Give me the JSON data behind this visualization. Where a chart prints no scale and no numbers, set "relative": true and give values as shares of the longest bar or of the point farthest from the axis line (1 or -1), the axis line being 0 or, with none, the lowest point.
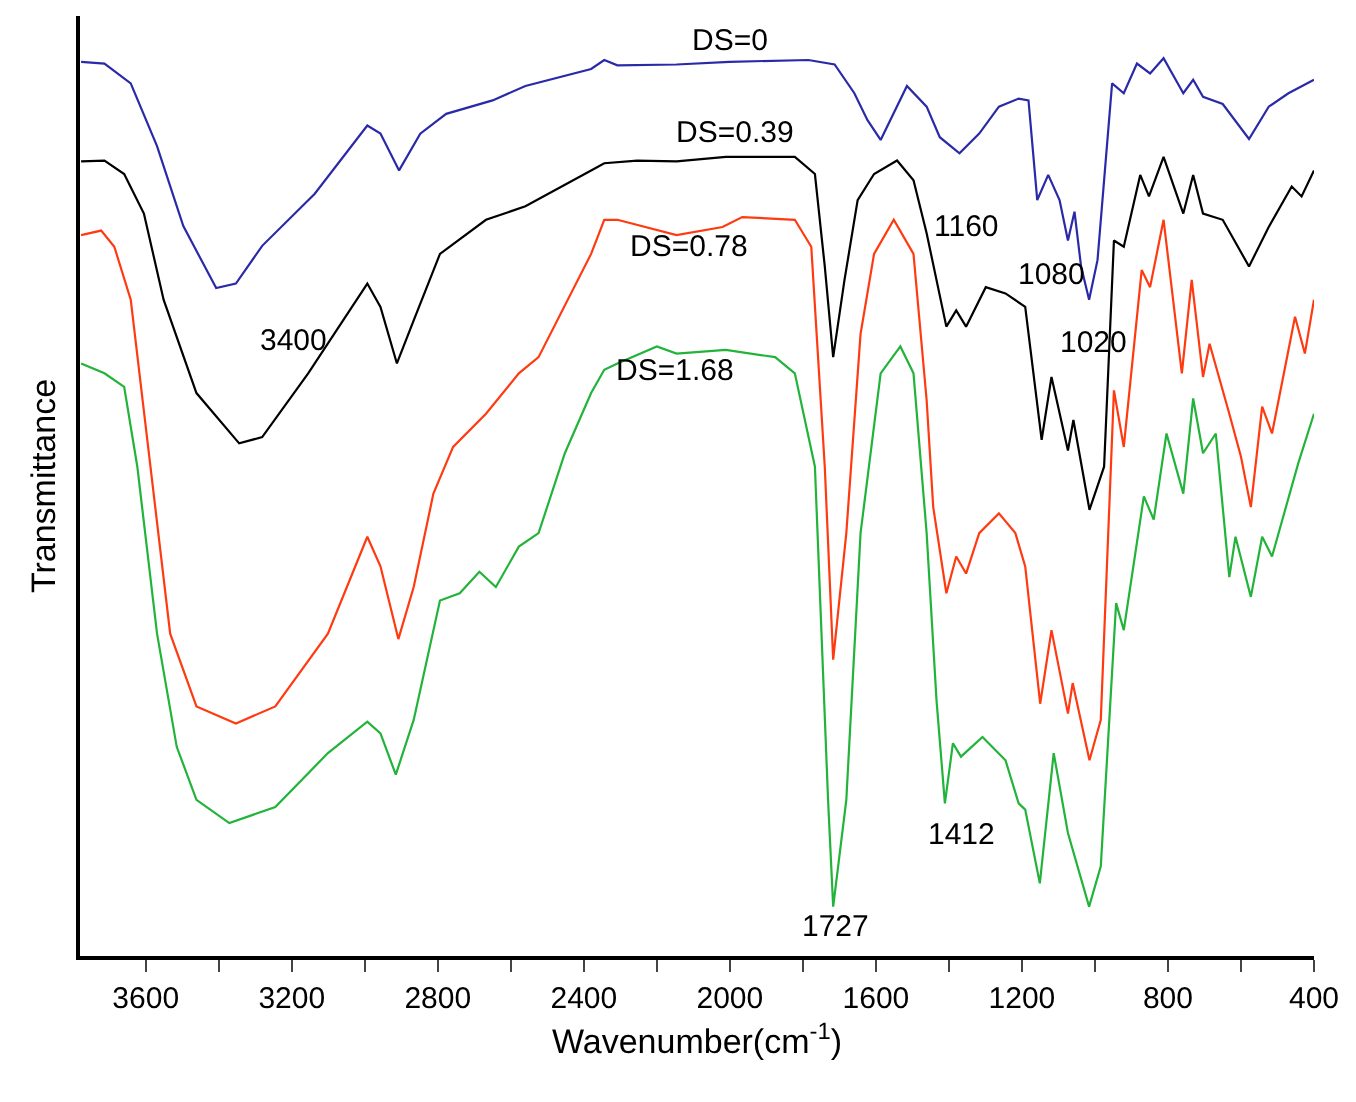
{
  "chart_data": {
    "type": "line",
    "relative": true,
    "xlabel": "Wavenumber(cm$^{-1}$)",
    "ylabel": "Transmittance",
    "xlim": [
      3780,
      400
    ],
    "xticks": [
      3600,
      {
        "value": 3400,
        "label": null
      },
      3200,
      {
        "value": 3000,
        "label": null
      },
      2800,
      {
        "value": 2600,
        "label": null
      },
      2400,
      {
        "value": 2200,
        "label": null
      },
      2000,
      {
        "value": 1800,
        "label": null
      },
      1600,
      {
        "value": 1400,
        "label": null
      },
      1200,
      {
        "value": 1000,
        "label": null
      },
      800,
      {
        "value": 600,
        "label": null
      },
      400
    ],
    "annotations": [
      {
        "text": "3400",
        "x": 3400,
        "y": 0.744
      },
      {
        "text": "1160",
        "x": 1160,
        "y": 0.842
      },
      {
        "text": "1080",
        "x": 1080,
        "y": 0.797
      },
      {
        "text": "1020",
        "x": 1020,
        "y": 0.731
      },
      {
        "text": "1727",
        "x": 1727,
        "y": 0.055
      },
      {
        "text": "1412",
        "x": 1412,
        "y": 0.17
      }
    ],
    "series": [
      {
        "name": "DS=0",
        "color": "#2a2aa8",
        "x": [
          3777,
          3713,
          3641,
          3569,
          3497,
          3407,
          3353,
          3281,
          3137,
          2993,
          2957,
          2906,
          2848,
          2777,
          2650,
          2560,
          2380,
          2344,
          2308,
          2146,
          2001,
          1785,
          1713,
          1659,
          1623,
          1587,
          1515,
          1461,
          1425,
          1371,
          1317,
          1263,
          1209,
          1182,
          1158,
          1128,
          1097,
          1074,
          1056,
          1038,
          1016,
          993,
          953,
          921,
          885,
          849,
          812,
          758,
          731,
          704,
          650,
          578,
          524,
          470,
          400
        ],
        "values": [
          0.996,
          0.994,
          0.972,
          0.902,
          0.813,
          0.744,
          0.749,
          0.791,
          0.849,
          0.925,
          0.916,
          0.875,
          0.916,
          0.938,
          0.953,
          0.969,
          0.988,
          0.998,
          0.992,
          0.993,
          0.996,
          0.998,
          0.993,
          0.961,
          0.931,
          0.909,
          0.969,
          0.946,
          0.912,
          0.894,
          0.916,
          0.946,
          0.955,
          0.953,
          0.842,
          0.87,
          0.842,
          0.797,
          0.829,
          0.768,
          0.731,
          0.775,
          0.972,
          0.961,
          0.994,
          0.983,
          1,
          0.961,
          0.976,
          0.957,
          0.949,
          0.91,
          0.946,
          0.961,
          0.976
        ]
      },
      {
        "name": "DS=0.39",
        "color": "#000000",
        "x": [
          3777,
          3713,
          3659,
          3605,
          3551,
          3461,
          3344,
          3281,
          3155,
          2993,
          2957,
          2912,
          2866,
          2794,
          2668,
          2560,
          2380,
          2344,
          2254,
          2146,
          2011,
          1822,
          1767,
          1740,
          1717,
          1686,
          1650,
          1605,
          1542,
          1497,
          1461,
          1407,
          1380,
          1353,
          1299,
          1245,
          1191,
          1146,
          1119,
          1074,
          1059,
          1015,
          975,
          948,
          921,
          876,
          852,
          812,
          758,
          731,
          704,
          650,
          578,
          524,
          461,
          434,
          400
        ],
        "values": [
          0.885,
          0.886,
          0.871,
          0.827,
          0.731,
          0.627,
          0.571,
          0.578,
          0.649,
          0.749,
          0.723,
          0.66,
          0.708,
          0.782,
          0.82,
          0.835,
          0.875,
          0.883,
          0.886,
          0.885,
          0.89,
          0.89,
          0.871,
          0.768,
          0.667,
          0.753,
          0.842,
          0.871,
          0.886,
          0.864,
          0.805,
          0.701,
          0.719,
          0.701,
          0.745,
          0.738,
          0.723,
          0.575,
          0.645,
          0.563,
          0.597,
          0.497,
          0.545,
          0.797,
          0.79,
          0.87,
          0.846,
          0.89,
          0.827,
          0.87,
          0.827,
          0.82,
          0.768,
          0.812,
          0.857,
          0.846,
          0.875
        ]
      },
      {
        "name": "DS=0.78",
        "color": "#ff3a10",
        "x": [
          3777,
          3722,
          3686,
          3641,
          3587,
          3533,
          3461,
          3353,
          3245,
          3101,
          2993,
          2957,
          2908,
          2866,
          2812,
          2758,
          2668,
          2578,
          2524,
          2380,
          2344,
          2308,
          2146,
          2020,
          1966,
          1822,
          1777,
          1740,
          1717,
          1681,
          1642,
          1605,
          1551,
          1497,
          1461,
          1443,
          1407,
          1380,
          1353,
          1317,
          1263,
          1218,
          1191,
          1150,
          1119,
          1074,
          1061,
          1015,
          984,
          948,
          921,
          872,
          849,
          812,
          762,
          735,
          704,
          686,
          632,
          600,
          573,
          542,
          515,
          452,
          425,
          400
        ],
        "values": [
          0.803,
          0.808,
          0.79,
          0.731,
          0.545,
          0.359,
          0.278,
          0.259,
          0.278,
          0.359,
          0.467,
          0.434,
          0.353,
          0.411,
          0.515,
          0.567,
          0.604,
          0.649,
          0.667,
          0.782,
          0.82,
          0.82,
          0.803,
          0.812,
          0.823,
          0.82,
          0.79,
          0.545,
          0.33,
          0.471,
          0.693,
          0.782,
          0.82,
          0.782,
          0.619,
          0.5,
          0.404,
          0.445,
          0.426,
          0.471,
          0.493,
          0.471,
          0.434,
          0.281,
          0.363,
          0.27,
          0.304,
          0.218,
          0.263,
          0.63,
          0.567,
          0.764,
          0.745,
          0.82,
          0.649,
          0.753,
          0.645,
          0.682,
          0.604,
          0.556,
          0.5,
          0.612,
          0.582,
          0.712,
          0.671,
          0.731
        ]
      },
      {
        "name": "DS=1.68",
        "color": "#22b33a",
        "x": [
          3777,
          3713,
          3659,
          3623,
          3569,
          3515,
          3461,
          3371,
          3245,
          3101,
          2993,
          2957,
          2915,
          2866,
          2794,
          2740,
          2686,
          2641,
          2578,
          2524,
          2452,
          2380,
          2344,
          2308,
          2200,
          2146,
          2011,
          1876,
          1822,
          1767,
          1731,
          1717,
          1681,
          1642,
          1587,
          1533,
          1497,
          1461,
          1434,
          1411,
          1389,
          1367,
          1308,
          1245,
          1209,
          1191,
          1151,
          1113,
          1074,
          1016,
          984,
          942,
          921,
          866,
          839,
          804,
          758,
          731,
          704,
          669,
          632,
          615,
          573,
          542,
          515,
          443,
          400
        ],
        "values": [
          0.66,
          0.649,
          0.634,
          0.545,
          0.359,
          0.233,
          0.174,
          0.148,
          0.166,
          0.226,
          0.261,
          0.248,
          0.202,
          0.263,
          0.396,
          0.404,
          0.428,
          0.411,
          0.456,
          0.471,
          0.56,
          0.627,
          0.653,
          0.66,
          0.679,
          0.671,
          0.675,
          0.667,
          0.649,
          0.545,
          0.174,
          0.055,
          0.174,
          0.471,
          0.649,
          0.679,
          0.649,
          0.471,
          0.285,
          0.17,
          0.237,
          0.222,
          0.244,
          0.218,
          0.17,
          0.163,
          0.081,
          0.226,
          0.137,
          0.055,
          0.1,
          0.393,
          0.363,
          0.512,
          0.486,
          0.582,
          0.515,
          0.621,
          0.56,
          0.582,
          0.422,
          0.467,
          0.4,
          0.467,
          0.445,
          0.549,
          0.604
        ]
      }
    ]
  }
}
